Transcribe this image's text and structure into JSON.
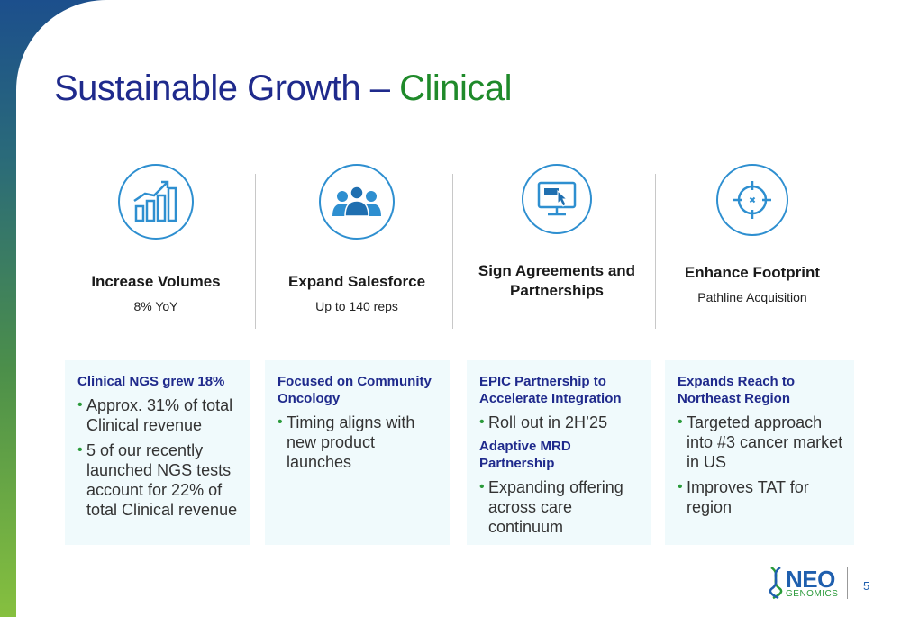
{
  "slide": {
    "title_main": "Sustainable Growth – ",
    "title_accent": "Clinical",
    "page_number": "5"
  },
  "pillars": [
    {
      "icon": "bar-chart-growth-icon",
      "title": "Increase Volumes",
      "subtitle": "8% YoY"
    },
    {
      "icon": "people-group-icon",
      "title": "Expand Salesforce",
      "subtitle": "Up to 140 reps"
    },
    {
      "icon": "monitor-cursor-icon",
      "title": "Sign Agreements and Partnerships",
      "subtitle": ""
    },
    {
      "icon": "crosshair-target-icon",
      "title": "Enhance Footprint",
      "subtitle": "Pathline Acquisition"
    }
  ],
  "cards": [
    {
      "heading": "Clinical NGS grew 18%",
      "bullets": [
        "Approx. 31% of total Clinical revenue",
        "5 of our recently launched NGS tests account for 22% of total Clinical revenue"
      ]
    },
    {
      "heading": "Focused on Community Oncology",
      "bullets": [
        "Timing aligns with new product launches"
      ]
    },
    {
      "heading": "EPIC Partnership to Accelerate Integration",
      "bullets": [
        "Roll out in 2H’25"
      ],
      "heading2": "Adaptive MRD Partnership",
      "bullets2": [
        "Expanding offering across care continuum"
      ]
    },
    {
      "heading": "Expands Reach to Northeast Region",
      "bullets": [
        "Targeted approach into #3 cancer market in US",
        "Improves TAT for region"
      ]
    }
  ],
  "logo": {
    "name": "NEO",
    "sub": "GENOMICS"
  },
  "colors": {
    "title": "#1f2a8c",
    "accent": "#1f8a2a",
    "icon": "#2e8fd0",
    "card_bg": "#f0fafc"
  }
}
